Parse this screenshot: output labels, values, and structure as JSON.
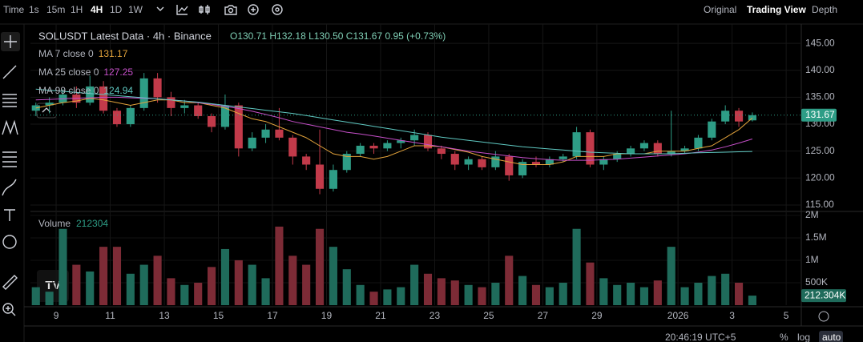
{
  "toolbar": {
    "intervals": [
      "Time",
      "1s",
      "15m",
      "1H",
      "4H",
      "1D",
      "1W"
    ],
    "views": [
      "Original",
      "Trading View",
      "Depth"
    ]
  },
  "footer": {
    "clock": "20:46:19 UTC+5",
    "percent": "%",
    "log": "log",
    "auto": "auto"
  },
  "chart_data": {
    "type": "candlestick",
    "title": "SOLUSDT Latest Data · 4h · Binance",
    "ohlc_text": "O130.71 H132.18 L130.50 C131.67 0.95 (+0.73%)",
    "up_color": "#2e9d86",
    "down_color": "#c23a4a",
    "x": [
      8.25,
      8.75,
      9.25,
      9.75,
      10.25,
      10.75,
      11.25,
      11.75,
      12.25,
      12.75,
      13.25,
      13.75,
      14.25,
      14.75,
      15.25,
      15.75,
      16.25,
      16.75,
      17.25,
      17.75,
      18.25,
      18.75,
      19.25,
      19.75,
      20.25,
      20.75,
      21.25,
      21.75,
      22.25,
      22.75,
      23.25,
      23.75,
      24.25,
      24.75,
      25.25,
      25.75,
      26.25,
      26.75,
      27.25,
      27.75,
      28.25,
      28.75,
      29.25,
      29.75,
      30.25,
      30.75,
      31.25,
      31.75,
      32.25,
      32.75,
      33.25,
      33.75,
      34.25,
      34.75
    ],
    "open": [
      132.5,
      133.5,
      134,
      135.5,
      134,
      137,
      132.5,
      130,
      133,
      138.5,
      135,
      133,
      133.5,
      131.5,
      129.5,
      133.5,
      125.5,
      127.5,
      129,
      127.5,
      124,
      122.5,
      118,
      121.5,
      124.5,
      126,
      125.5,
      126.5,
      127,
      128,
      125.5,
      124.5,
      122.5,
      123.5,
      122,
      124,
      120.5,
      123,
      122.5,
      123.5,
      124,
      128.5,
      122.5,
      123.5,
      124.5,
      125.5,
      126.5,
      124.5,
      125,
      125.5,
      127.5,
      130.5,
      132.5,
      130.71
    ],
    "high": [
      134,
      135,
      136.5,
      137,
      139,
      138,
      133,
      133.5,
      139.5,
      139.5,
      136,
      134.5,
      134,
      132,
      135.5,
      134,
      128.5,
      130,
      133,
      128,
      124.5,
      129,
      122.5,
      125,
      126.5,
      126.5,
      127,
      127.5,
      129,
      128.5,
      126,
      125,
      124,
      124,
      125,
      124.5,
      123.5,
      124,
      124,
      124.5,
      129.5,
      129,
      124,
      125,
      126,
      127,
      127,
      132.5,
      126,
      128,
      131,
      133.5,
      133,
      132.18
    ],
    "low": [
      131.5,
      132,
      133.5,
      133,
      133.5,
      132,
      129.5,
      129.5,
      132.5,
      134,
      131.5,
      132,
      131,
      128.5,
      129,
      124,
      125,
      126.5,
      127,
      122.5,
      121.5,
      117,
      117.5,
      121,
      124,
      124.5,
      125,
      125.5,
      126,
      125,
      123.5,
      121.5,
      121.5,
      121.5,
      121.5,
      119.5,
      120,
      122,
      122,
      123,
      123.5,
      122,
      121.5,
      123,
      124,
      125,
      124,
      124,
      124.5,
      125,
      127,
      130,
      129.5,
      130.5
    ],
    "close": [
      133.5,
      134,
      135.5,
      134,
      137,
      132.5,
      130,
      133,
      138.5,
      135,
      133,
      133.5,
      131.5,
      129.5,
      133.5,
      125.5,
      127.5,
      129,
      127.5,
      124,
      122.5,
      118,
      121.5,
      124.5,
      126,
      125.5,
      126.5,
      127,
      128,
      125.5,
      124.5,
      122.5,
      123.5,
      122,
      124,
      120.5,
      123,
      122.5,
      123.5,
      124,
      128.5,
      122.5,
      123.5,
      124.5,
      125.5,
      126.5,
      124.5,
      125,
      125.5,
      127.5,
      130.5,
      132.5,
      130.5,
      131.67
    ],
    "ylim": [
      114.1,
      147.4
    ],
    "yticks": [
      {
        "value": 115,
        "label": "115.00"
      },
      {
        "value": 120,
        "label": "120.00"
      },
      {
        "value": 125,
        "label": "125.00"
      },
      {
        "value": 130,
        "label": "130.00"
      },
      {
        "value": 135,
        "label": "135.00"
      },
      {
        "value": 140,
        "label": "140.00"
      },
      {
        "value": 145,
        "label": "145.00"
      }
    ],
    "xlim": [
      8.05,
      36.56
    ],
    "xticks": [
      9,
      11,
      13,
      15,
      17,
      19,
      21,
      23,
      25,
      27,
      29,
      {
        "value": 32,
        "label": "2026"
      },
      {
        "value": 34,
        "label": "3"
      },
      {
        "value": 36,
        "label": "5"
      }
    ],
    "ma": [
      {
        "name": "MA 7 close 0",
        "color": "#e3a33b",
        "values": [
          133,
          133.5,
          134,
          134.3,
          134.8,
          134.5,
          134,
          133.5,
          134,
          134.5,
          134.5,
          134,
          134,
          133.5,
          133,
          132,
          131,
          130.5,
          129.5,
          128.5,
          127.5,
          126,
          124.5,
          124,
          124,
          123.5,
          124,
          125,
          126,
          126,
          125.8,
          125.3,
          124.8,
          124,
          123.5,
          123,
          122.5,
          122.5,
          122.5,
          123,
          124,
          124,
          124,
          124.5,
          124.5,
          124.5,
          125,
          125,
          125,
          125.5,
          126,
          127.5,
          129,
          131.17
        ]
      },
      {
        "name": "MA 25 close 0",
        "color": "#c64fc9",
        "values": [
          134.5,
          134.6,
          134.7,
          134.8,
          134.9,
          135,
          135,
          134.9,
          134.8,
          134.7,
          134.5,
          134.3,
          134,
          133.7,
          133.3,
          132.9,
          132.4,
          131.8,
          131.2,
          130.5,
          130,
          129.5,
          129,
          128.5,
          128.2,
          127.8,
          127.4,
          127,
          126.6,
          126.2,
          125.8,
          125.4,
          125,
          124.7,
          124.4,
          124.1,
          123.8,
          123.6,
          123.4,
          123.3,
          123.3,
          123.3,
          123.4,
          123.5,
          123.7,
          123.9,
          124.1,
          124.3,
          124.5,
          124.8,
          125.2,
          125.8,
          126.5,
          127.25
        ]
      },
      {
        "name": "MA 99 close 0",
        "color": "#5fc9c2",
        "values": [
          136.5,
          136.3,
          136.1,
          135.9,
          135.7,
          135.5,
          135.3,
          135.1,
          134.9,
          134.7,
          134.5,
          134.3,
          134.1,
          133.8,
          133.5,
          133.2,
          132.9,
          132.6,
          132.3,
          132,
          131.6,
          131.2,
          130.8,
          130.4,
          130,
          129.6,
          129.2,
          128.8,
          128.4,
          128,
          127.6,
          127.3,
          127,
          126.7,
          126.4,
          126.1,
          125.8,
          125.6,
          125.4,
          125.2,
          125,
          124.8,
          124.7,
          124.6,
          124.5,
          124.5,
          124.5,
          124.5,
          124.6,
          124.7,
          124.75,
          124.8,
          124.88,
          124.94
        ]
      }
    ],
    "volume": {
      "name": "Volume",
      "value_label": "212.304K",
      "up_color": "#1f6b5b",
      "down_color": "#7d2b36",
      "values": [
        400000,
        300000,
        1700000,
        900000,
        750000,
        1300000,
        1300000,
        700000,
        900000,
        1100000,
        600000,
        450000,
        500000,
        850000,
        1250000,
        1000000,
        900000,
        600000,
        1750000,
        1100000,
        900000,
        1700000,
        1300000,
        800000,
        450000,
        300000,
        350000,
        400000,
        900000,
        700000,
        600000,
        550000,
        450000,
        400000,
        500000,
        1100000,
        650000,
        450000,
        400000,
        500000,
        1700000,
        950000,
        600000,
        450000,
        500000,
        400000,
        550000,
        1300000,
        400000,
        500000,
        650000,
        700000,
        500000,
        212304
      ],
      "ylim": [
        0,
        2070000
      ],
      "yticks": [
        {
          "value": 500000,
          "label": "500K"
        },
        {
          "value": 1000000,
          "label": "1M"
        },
        {
          "value": 1500000,
          "label": "1.5M"
        },
        {
          "value": 2000000,
          "label": "2M"
        }
      ]
    }
  }
}
